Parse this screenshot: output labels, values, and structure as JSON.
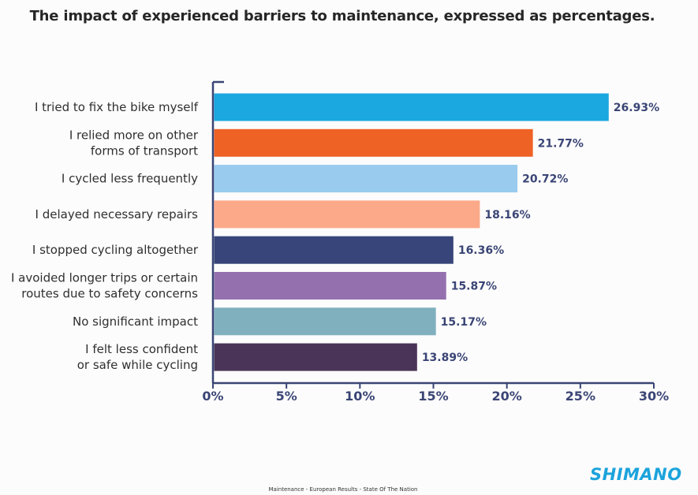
{
  "chart_data": {
    "type": "bar",
    "orientation": "horizontal",
    "title": "The impact of experienced barriers to maintenance, expressed as percentages.",
    "categories": [
      [
        "I tried to fix the bike myself"
      ],
      [
        "I relied more on other",
        "forms of transport"
      ],
      [
        "I cycled less frequently"
      ],
      [
        "I delayed necessary repairs"
      ],
      [
        "I stopped cycling altogether"
      ],
      [
        "I avoided longer trips or certain",
        "routes due to safety concerns"
      ],
      [
        "No significant impact"
      ],
      [
        "I felt less confident",
        "or safe while cycling"
      ]
    ],
    "values": [
      26.93,
      21.77,
      20.72,
      18.16,
      16.36,
      15.87,
      15.17,
      13.89
    ],
    "value_labels": [
      "26.93%",
      "21.77%",
      "20.72%",
      "18.16%",
      "16.36%",
      "15.87%",
      "15.17%",
      "13.89%"
    ],
    "colors": [
      "#1ba7df",
      "#ee6225",
      "#99cbef",
      "#fca98a",
      "#37457a",
      "#9570ae",
      "#80b0be",
      "#4a3458"
    ],
    "xlim": [
      0,
      30
    ],
    "xticks": [
      0,
      5,
      10,
      15,
      20,
      25,
      30
    ],
    "xtick_labels": [
      "0%",
      "5%",
      "10%",
      "15%",
      "20%",
      "25%",
      "30%"
    ],
    "axis_color": "#3a4575",
    "grid": false
  },
  "brand": {
    "name": "SHIMANO",
    "color": "#1ba3dc"
  },
  "footer": {
    "text": "Maintenance - European Results - State Of The Nation"
  }
}
